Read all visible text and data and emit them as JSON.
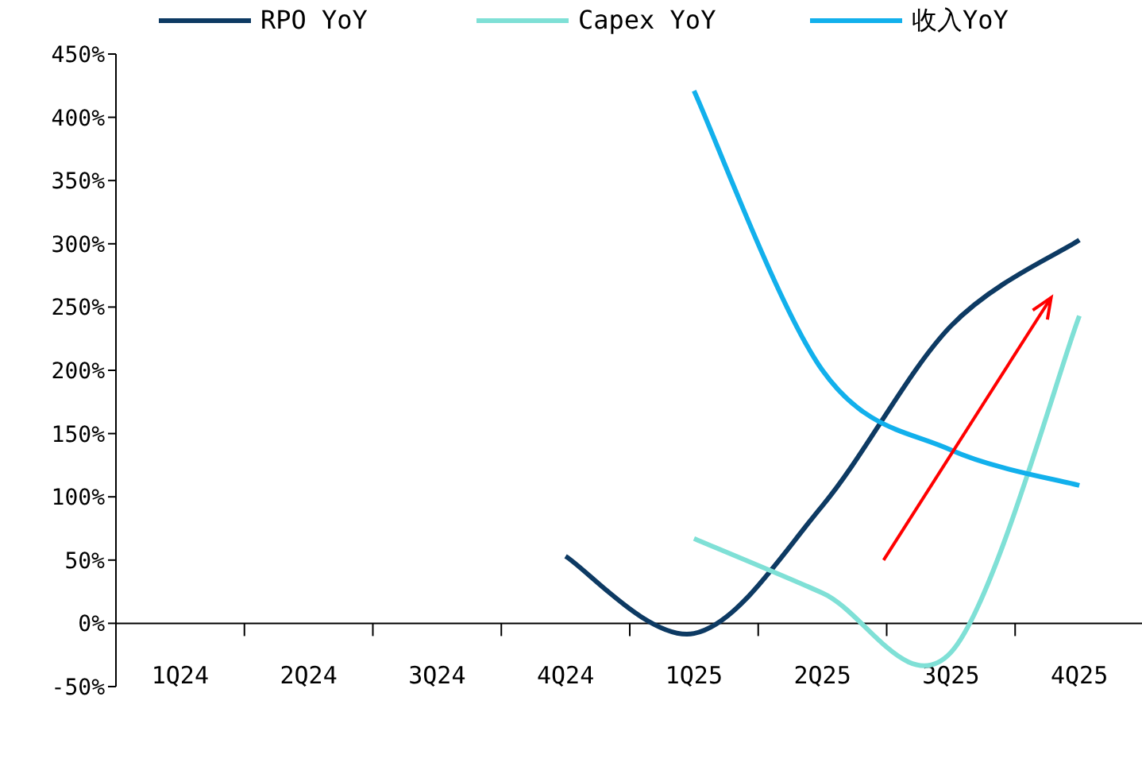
{
  "chart_data": {
    "type": "line",
    "categories": [
      "1Q24",
      "2Q24",
      "3Q24",
      "4Q24",
      "1Q25",
      "2Q25",
      "3Q25",
      "4Q25"
    ],
    "series": [
      {
        "name": "RPO YoY",
        "color": "#0d3a63",
        "values": [
          null,
          null,
          null,
          53,
          -8,
          93,
          235,
          303
        ]
      },
      {
        "name": "Capex YoY",
        "color": "#7fe0d6",
        "values": [
          null,
          null,
          null,
          null,
          67,
          24,
          -23,
          243
        ]
      },
      {
        "name": "收入YoY",
        "color": "#12b0ec",
        "values": [
          null,
          null,
          null,
          null,
          421,
          200,
          137,
          109
        ]
      }
    ],
    "ylim": [
      -50,
      450
    ],
    "yticks": [
      {
        "value": -50,
        "label": "-50%"
      },
      {
        "value": 0,
        "label": "0%"
      },
      {
        "value": 50,
        "label": "50%"
      },
      {
        "value": 100,
        "label": "100%"
      },
      {
        "value": 150,
        "label": "150%"
      },
      {
        "value": 200,
        "label": "200%"
      },
      {
        "value": 250,
        "label": "250%"
      },
      {
        "value": 300,
        "label": "300%"
      },
      {
        "value": 350,
        "label": "350%"
      },
      {
        "value": 400,
        "label": "400%"
      },
      {
        "value": 450,
        "label": "450%"
      }
    ],
    "legend": "top",
    "grid": false
  }
}
